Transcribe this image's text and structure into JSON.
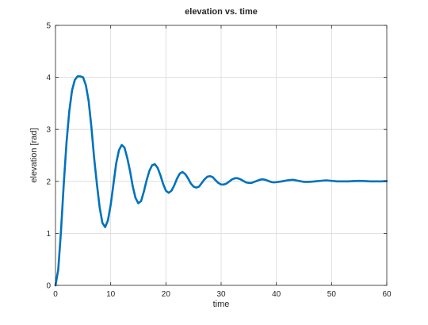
{
  "chart_data": {
    "type": "line",
    "title": "elevation vs. time",
    "xlabel": "time",
    "ylabel": "elevation [rad]",
    "xlim": [
      0,
      60
    ],
    "ylim": [
      0,
      5
    ],
    "xticks": [
      0,
      10,
      20,
      30,
      40,
      50,
      60
    ],
    "yticks": [
      0,
      1,
      2,
      3,
      4,
      5
    ],
    "grid": true,
    "legend": "none",
    "colors": {
      "line": "#0072bd",
      "grid": "#d9d9d9",
      "axes": "#262626"
    },
    "series": [
      {
        "x": [
          0,
          0.5,
          1,
          1.5,
          2,
          2.5,
          3,
          3.5,
          4,
          4.5,
          5,
          5.5,
          6,
          6.5,
          7,
          7.5,
          8,
          8.5,
          9,
          9.5,
          10,
          10.5,
          11,
          11.5,
          12,
          12.5,
          13,
          13.5,
          14,
          14.5,
          15,
          15.5,
          16,
          16.5,
          17,
          17.5,
          18,
          18.5,
          19,
          19.5,
          20,
          20.5,
          21,
          21.5,
          22,
          22.5,
          23,
          23.5,
          24,
          24.5,
          25,
          25.5,
          26,
          26.5,
          27,
          27.5,
          28,
          28.5,
          29,
          29.5,
          30,
          30.5,
          31,
          31.5,
          32,
          32.5,
          33,
          33.5,
          34,
          34.5,
          35,
          35.5,
          36,
          36.5,
          37,
          37.5,
          38,
          38.5,
          39,
          39.5,
          40,
          41,
          42,
          43,
          44,
          45,
          46,
          47,
          48,
          49,
          50,
          51,
          52,
          53,
          54,
          55,
          56,
          57,
          58,
          59,
          60
        ],
        "values": [
          0,
          0.3,
          1.05,
          1.95,
          2.75,
          3.35,
          3.75,
          3.95,
          4.02,
          4.02,
          4.0,
          3.85,
          3.55,
          3.05,
          2.45,
          1.95,
          1.5,
          1.2,
          1.12,
          1.25,
          1.55,
          1.95,
          2.35,
          2.6,
          2.7,
          2.65,
          2.45,
          2.2,
          1.9,
          1.68,
          1.58,
          1.62,
          1.8,
          2.02,
          2.2,
          2.31,
          2.33,
          2.26,
          2.12,
          1.95,
          1.82,
          1.78,
          1.82,
          1.92,
          2.05,
          2.15,
          2.18,
          2.14,
          2.06,
          1.96,
          1.9,
          1.88,
          1.9,
          1.97,
          2.04,
          2.09,
          2.1,
          2.08,
          2.02,
          1.97,
          1.94,
          1.94,
          1.96,
          2.0,
          2.04,
          2.06,
          2.06,
          2.04,
          2.01,
          1.98,
          1.97,
          1.97,
          1.99,
          2.01,
          2.03,
          2.04,
          2.03,
          2.01,
          1.99,
          1.98,
          1.985,
          2.0,
          2.02,
          2.03,
          2.01,
          1.99,
          1.99,
          2.0,
          2.01,
          2.02,
          2.01,
          2.0,
          2.0,
          2.0,
          2.005,
          2.01,
          2.005,
          2.0,
          2.0,
          2.0,
          2.005
        ]
      }
    ]
  }
}
